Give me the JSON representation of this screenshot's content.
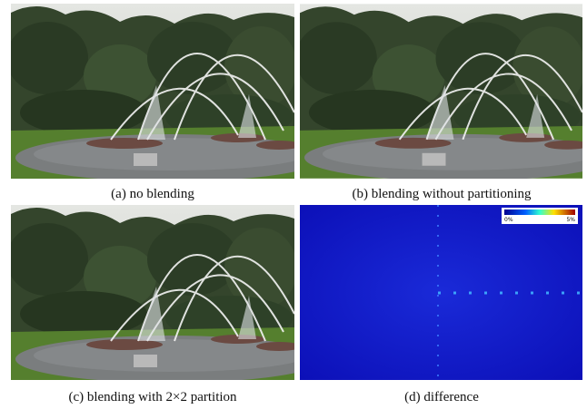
{
  "figure": {
    "panels": [
      {
        "caption": "(a) no blending"
      },
      {
        "caption": "(b) blending without partitioning"
      },
      {
        "caption": "(c) blending with 2×2 partition"
      },
      {
        "caption": "(d) difference",
        "colorbar": {
          "min_label": "0%",
          "max_label": "5%"
        }
      }
    ]
  }
}
